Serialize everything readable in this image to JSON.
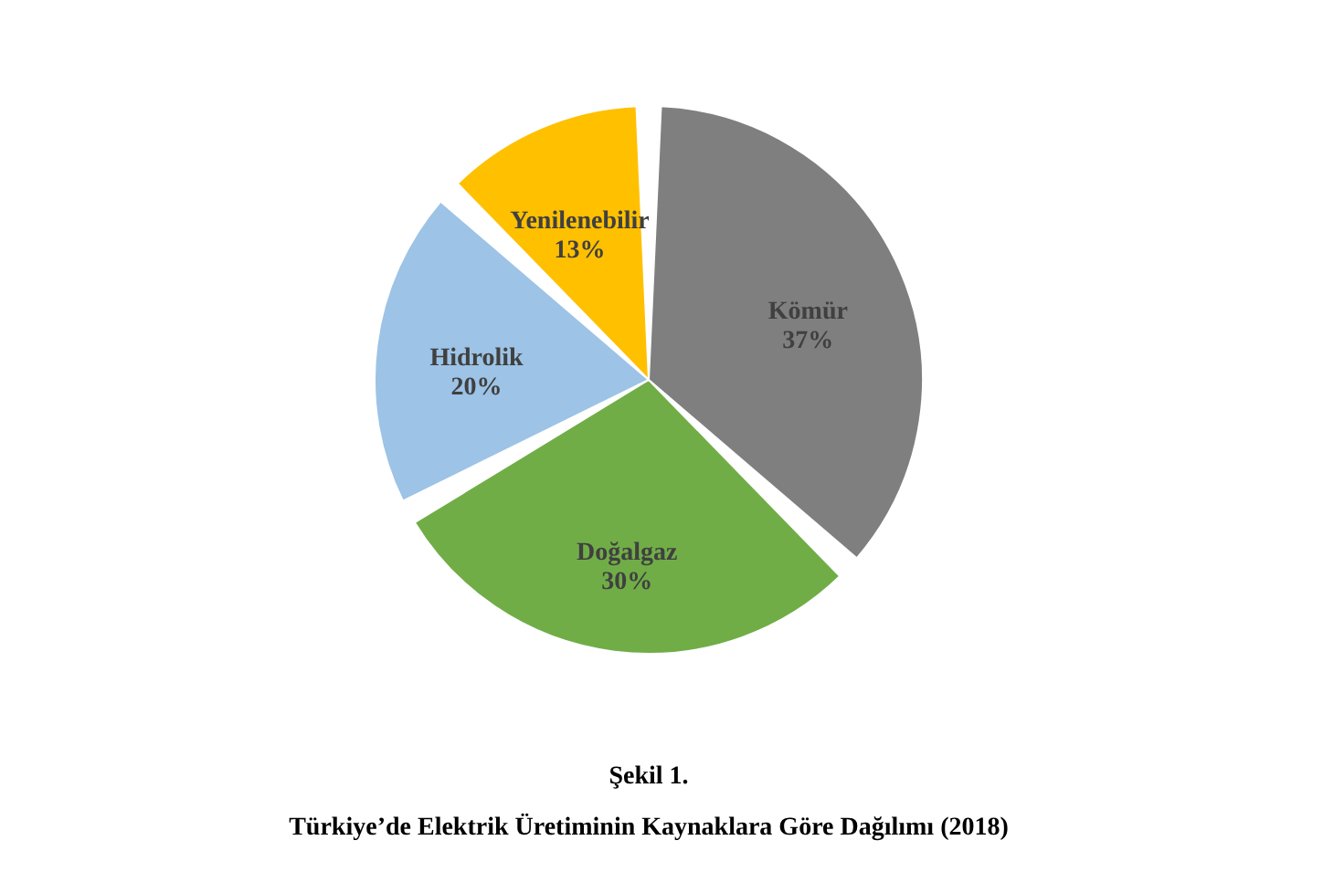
{
  "chart_data": {
    "type": "pie",
    "title": "Şekil 1.",
    "subtitle": "Türkiye’de Elektrik Üretiminin Kaynaklara Göre Dağılımı (2018)",
    "categories": [
      "Kömür",
      "Doğalgaz",
      "Hidrolik",
      "Yenilenebilir"
    ],
    "values": [
      37,
      30,
      20,
      13
    ],
    "value_labels": [
      "37%",
      "30%",
      "20%",
      "13%"
    ],
    "colors": [
      "#7f7f7f",
      "#70ad47",
      "#9dc3e6",
      "#ffc000"
    ],
    "legend": false
  }
}
